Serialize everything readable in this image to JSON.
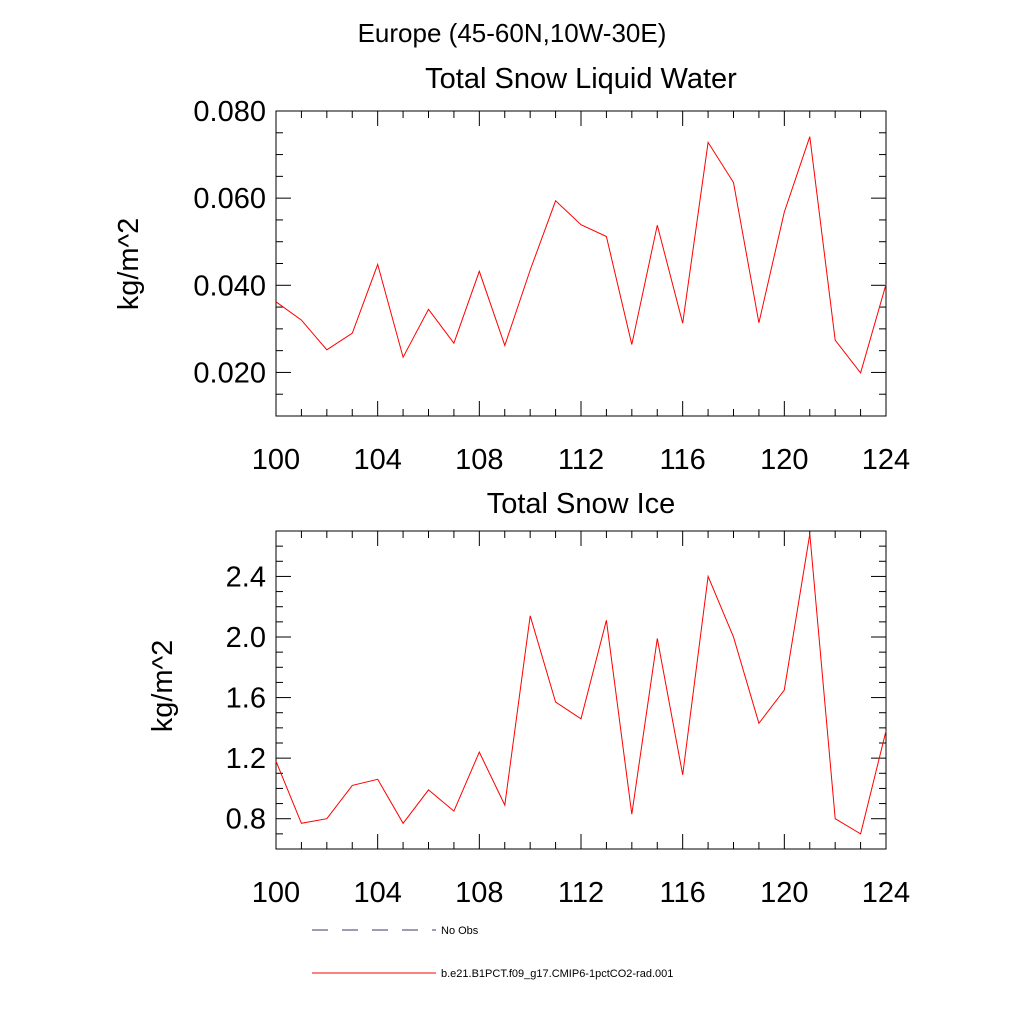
{
  "figure": {
    "suptitle": "Europe (45-60N,10W-30E)"
  },
  "chart_data": [
    {
      "type": "line",
      "title": "Total Snow Liquid Water",
      "xlabel": "",
      "ylabel": "kg/m^2",
      "xlim": [
        100,
        124
      ],
      "ylim": [
        0.01,
        0.08
      ],
      "xticks": [
        100,
        104,
        108,
        112,
        116,
        120,
        124
      ],
      "xtick_labels": [
        "100",
        "104",
        "108",
        "112",
        "116",
        "120",
        "124"
      ],
      "yticks": [
        0.02,
        0.04,
        0.06,
        0.08
      ],
      "ytick_labels": [
        "0.020",
        "0.040",
        "0.060",
        "0.080"
      ],
      "grid": false,
      "series": [
        {
          "name": "b.e21.B1PCT.f09_g17.CMIP6-1pctCO2-rad.001",
          "color": "#ff0000",
          "x": [
            100,
            101,
            102,
            103,
            104,
            105,
            106,
            107,
            108,
            109,
            110,
            111,
            112,
            113,
            114,
            115,
            116,
            117,
            118,
            119,
            120,
            121,
            122,
            123,
            124
          ],
          "values": [
            0.0362,
            0.032,
            0.0252,
            0.029,
            0.0448,
            0.0235,
            0.0345,
            0.0267,
            0.0432,
            0.0262,
            0.0435,
            0.0594,
            0.0539,
            0.0512,
            0.0264,
            0.0538,
            0.0313,
            0.0728,
            0.0636,
            0.0314,
            0.0568,
            0.0741,
            0.0274,
            0.0199,
            0.0402
          ]
        }
      ]
    },
    {
      "type": "line",
      "title": "Total Snow Ice",
      "xlabel": "",
      "ylabel": "kg/m^2",
      "xlim": [
        100,
        124
      ],
      "ylim": [
        0.6,
        2.7
      ],
      "xticks": [
        100,
        104,
        108,
        112,
        116,
        120,
        124
      ],
      "xtick_labels": [
        "100",
        "104",
        "108",
        "112",
        "116",
        "120",
        "124"
      ],
      "yticks": [
        0.8,
        1.2,
        1.6,
        2.0,
        2.4
      ],
      "ytick_labels": [
        "0.8",
        "1.2",
        "1.6",
        "2.0",
        "2.4"
      ],
      "grid": false,
      "series": [
        {
          "name": "b.e21.B1PCT.f09_g17.CMIP6-1pctCO2-rad.001",
          "color": "#ff0000",
          "x": [
            100,
            101,
            102,
            103,
            104,
            105,
            106,
            107,
            108,
            109,
            110,
            111,
            112,
            113,
            114,
            115,
            116,
            117,
            118,
            119,
            120,
            121,
            122,
            123,
            124
          ],
          "values": [
            1.18,
            0.77,
            0.8,
            1.02,
            1.06,
            0.77,
            0.99,
            0.85,
            1.24,
            0.89,
            2.14,
            1.57,
            1.46,
            2.11,
            0.83,
            1.99,
            1.09,
            2.4,
            2.0,
            1.43,
            1.65,
            2.68,
            0.8,
            0.7,
            1.38
          ]
        }
      ]
    }
  ],
  "legend": {
    "placement": "bottom",
    "entries": [
      {
        "label": "No Obs",
        "color": "#3a3a6e",
        "style": "dashed"
      },
      {
        "label": "b.e21.B1PCT.f09_g17.CMIP6-1pctCO2-rad.001",
        "color": "#ff0000",
        "style": "solid"
      }
    ]
  }
}
